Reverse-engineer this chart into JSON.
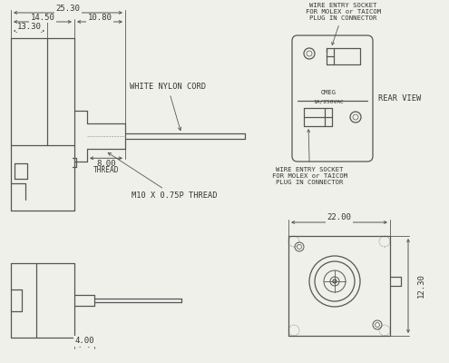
{
  "bg_color": "#f0f0eb",
  "line_color": "#555555",
  "dim_color": "#555555",
  "text_color": "#333333",
  "fs_dim": 6.5,
  "fs_label": 6.2,
  "fs_small": 5.2,
  "dims": {
    "total_width": "25.30",
    "left_width": "14.50",
    "right_width": "10.80",
    "inner_width": "13.30",
    "thread_dia": "8.00",
    "thread_label": "THREAD",
    "thread_note": "M10 X 0.75P THREAD",
    "cord_label": "WHITE NYLON CORD",
    "bottom_dim": "4.00",
    "front_width": "22.00",
    "front_height": "12.30",
    "omeg": "OMEG\n1A/250VAC",
    "rear_view": "REAR VIEW",
    "wire_top": "WIRE ENTRY SOCKET\nFOR MOLEX or TAICOM\nPLUG IN CONNECTOR",
    "wire_bot": "WIRE ENTRY SOCKET\nFOR MOLEX or TAICOM\nPLUG IN CONNECTOR"
  }
}
